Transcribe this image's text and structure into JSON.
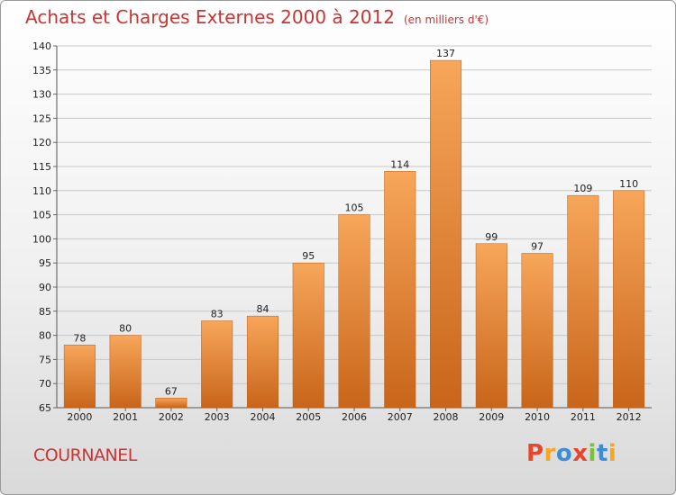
{
  "header": {
    "title": "Achats et Charges Externes 2000 à 2012",
    "subtitle": "(en milliers d'€)"
  },
  "footer": {
    "city": "COURNANEL",
    "logo": "Proxiti"
  },
  "colors": {
    "title": "#cc3333",
    "bar_light": "#f7a65a",
    "bar_dark": "#c8651a",
    "logo": [
      "#e6462c",
      "#f5a623",
      "#3c8dd6",
      "#e6462c",
      "#7cbf3c",
      "#3c8dd6",
      "#f5a623"
    ]
  },
  "chart_data": {
    "type": "bar",
    "title": "Achats et Charges Externes 2000 à 2012",
    "subtitle": "(en milliers d'€)",
    "categories": [
      "2000",
      "2001",
      "2002",
      "2003",
      "2004",
      "2005",
      "2006",
      "2007",
      "2008",
      "2009",
      "2010",
      "2011",
      "2012"
    ],
    "values": [
      78,
      80,
      67,
      83,
      84,
      95,
      105,
      114,
      137,
      99,
      97,
      109,
      110
    ],
    "ylim": [
      65,
      140
    ],
    "yticks": [
      65,
      70,
      75,
      80,
      85,
      90,
      95,
      100,
      105,
      110,
      115,
      120,
      125,
      130,
      135,
      140
    ],
    "grid": true,
    "data_labels": true
  }
}
